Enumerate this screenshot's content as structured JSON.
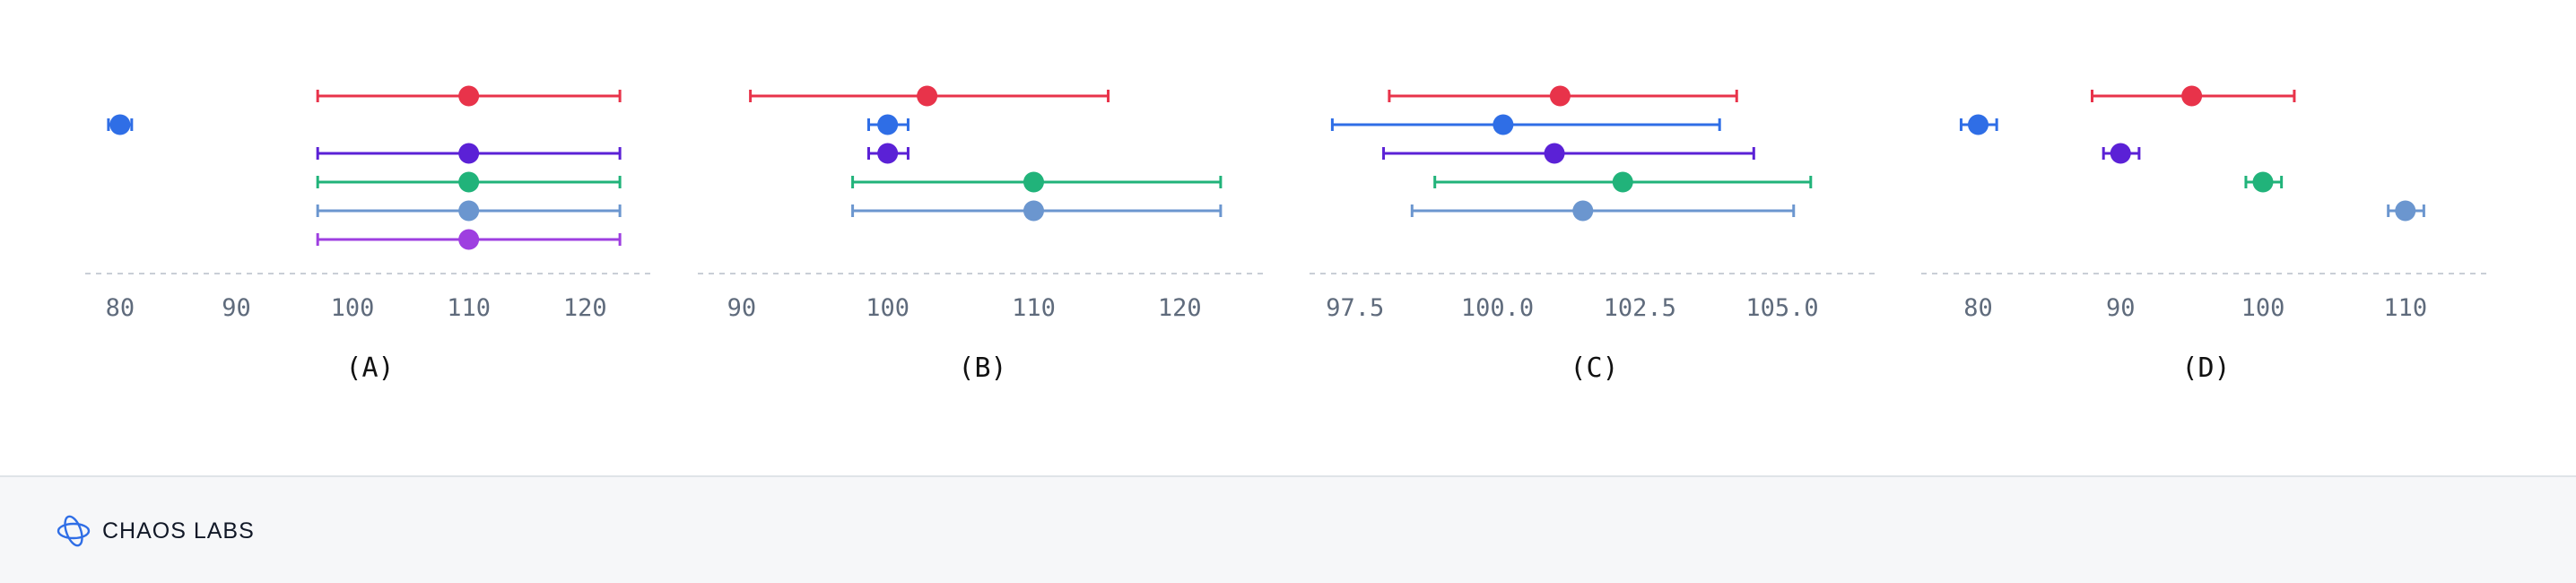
{
  "chart_data": [
    {
      "type": "scatter",
      "title": "(A)",
      "xlim": [
        77,
        126
      ],
      "xticks": [
        80,
        90,
        100,
        110,
        120
      ],
      "grid": false,
      "series": [
        {
          "color": "#e8334a",
          "x": 110,
          "xerr_low": 97,
          "xerr_high": 123
        },
        {
          "color": "#2f6ee6",
          "x": 80,
          "xerr_low": 79,
          "xerr_high": 81
        },
        {
          "color": "#5b21d6",
          "x": 110,
          "xerr_low": 97,
          "xerr_high": 123
        },
        {
          "color": "#21b37a",
          "x": 110,
          "xerr_low": 97,
          "xerr_high": 123
        },
        {
          "color": "#6b96cf",
          "x": 110,
          "xerr_low": 97,
          "xerr_high": 123
        },
        {
          "color": "#9e3fe0",
          "x": 110,
          "xerr_low": 97,
          "xerr_high": 123
        }
      ]
    },
    {
      "type": "scatter",
      "title": "(B)",
      "xlim": [
        87,
        126
      ],
      "xticks": [
        90,
        100,
        110,
        120
      ],
      "grid": false,
      "series": [
        {
          "color": "#e8334a",
          "x": 102.7,
          "xerr_low": 90.6,
          "xerr_high": 115.1
        },
        {
          "color": "#2f6ee6",
          "x": 100,
          "xerr_low": 98.7,
          "xerr_high": 101.4
        },
        {
          "color": "#5b21d6",
          "x": 100,
          "xerr_low": 98.7,
          "xerr_high": 101.4
        },
        {
          "color": "#21b37a",
          "x": 110,
          "xerr_low": 97.6,
          "xerr_high": 122.8
        },
        {
          "color": "#6b96cf",
          "x": 110,
          "xerr_low": 97.6,
          "xerr_high": 122.8
        }
      ]
    },
    {
      "type": "scatter",
      "title": "(C)",
      "xlim": [
        96.7,
        106.7
      ],
      "xticks": [
        97.5,
        100.0,
        102.5,
        105.0
      ],
      "tick_labels": [
        "97.5",
        "100.0",
        "102.5",
        "105.0"
      ],
      "grid": false,
      "series": [
        {
          "color": "#e8334a",
          "x": 101.1,
          "xerr_low": 98.1,
          "xerr_high": 104.2
        },
        {
          "color": "#2f6ee6",
          "x": 100.1,
          "xerr_low": 97.1,
          "xerr_high": 103.9
        },
        {
          "color": "#5b21d6",
          "x": 101.0,
          "xerr_low": 98.0,
          "xerr_high": 104.5
        },
        {
          "color": "#21b37a",
          "x": 102.2,
          "xerr_low": 98.9,
          "xerr_high": 105.5
        },
        {
          "color": "#6b96cf",
          "x": 101.5,
          "xerr_low": 98.5,
          "xerr_high": 105.2
        }
      ]
    },
    {
      "type": "scatter",
      "title": "(D)",
      "xlim": [
        76,
        116
      ],
      "xticks": [
        80,
        90,
        100,
        110
      ],
      "grid": false,
      "series": [
        {
          "color": "#e8334a",
          "x": 95,
          "xerr_low": 88,
          "xerr_high": 102.2
        },
        {
          "color": "#2f6ee6",
          "x": 80,
          "xerr_low": 78.8,
          "xerr_high": 81.3
        },
        {
          "color": "#5b21d6",
          "x": 90,
          "xerr_low": 88.8,
          "xerr_high": 91.3
        },
        {
          "color": "#21b37a",
          "x": 100,
          "xerr_low": 98.8,
          "xerr_high": 101.3
        },
        {
          "color": "#6b96cf",
          "x": 110,
          "xerr_low": 108.8,
          "xerr_high": 111.3
        }
      ]
    }
  ],
  "footer": {
    "brand_name": "CHAOS LABS",
    "brand_icon": "chaos-labs-logo-icon",
    "brand_color": "#2f6ee6"
  }
}
